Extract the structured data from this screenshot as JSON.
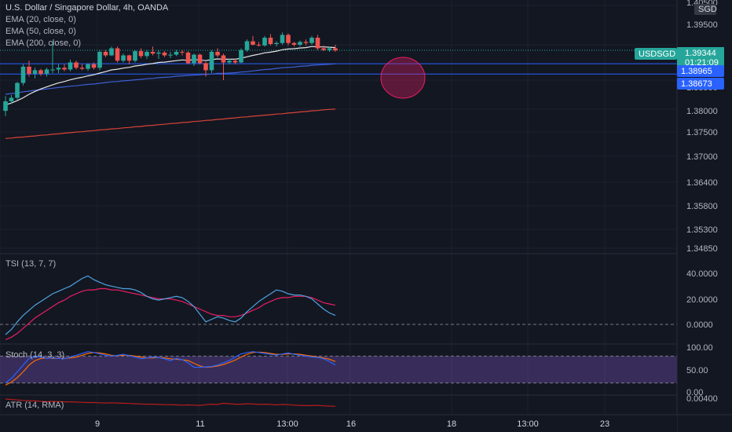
{
  "symbol": {
    "title": "U.S. Dollar / Singapore Dollar, 4h, OANDA",
    "currency": "SGD",
    "ticker": "USDSGD",
    "last_price": "1.39344",
    "countdown": "01:21:09"
  },
  "legend": [
    {
      "label": "EMA (20, close, 0)",
      "color": "#e6e6e6"
    },
    {
      "label": "EMA (50, close, 0)",
      "color": "#3d5fd6"
    },
    {
      "label": "EMA (200, close, 0)",
      "color": "#d84337"
    }
  ],
  "price_axis": {
    "ticks": [
      "1.40500",
      "1.39500",
      "1.38500",
      "1.38000",
      "1.37500",
      "1.37000",
      "1.36400",
      "1.35800",
      "1.35300",
      "1.34850"
    ]
  },
  "horizontal_lines": {
    "line1": "1.38965",
    "line2": "1.38673",
    "color": "#2962ff"
  },
  "tsi": {
    "label": "TSI (13, 7, 7)",
    "ticks": [
      "40.0000",
      "20.0000",
      "0.0000"
    ]
  },
  "stoch": {
    "label": "Stoch (14, 3, 3)",
    "ticks": [
      "100.00",
      "50.00",
      "0.00"
    ]
  },
  "atr": {
    "label": "ATR (14, RMA)",
    "ticks": [
      "0.00400"
    ]
  },
  "time_axis": {
    "ticks": [
      "9",
      "11",
      "13:00",
      "16",
      "18",
      "13:00",
      "23"
    ]
  },
  "colors": {
    "up": "#26a69a",
    "down": "#ef5350",
    "bg": "#131722",
    "grid": "#1e222d",
    "tsi_line": "#4fa3e0",
    "tsi_signal": "#e91e63"
  },
  "chart_data": {
    "type": "candlestick",
    "candles": [
      [
        1.3763,
        1.3805,
        1.3748,
        1.379
      ],
      [
        1.379,
        1.3808,
        1.3782,
        1.38
      ],
      [
        1.38,
        1.3845,
        1.3795,
        1.3842
      ],
      [
        1.3842,
        1.3895,
        1.3835,
        1.3888
      ],
      [
        1.3888,
        1.3905,
        1.386,
        1.3868
      ],
      [
        1.3868,
        1.3885,
        1.3855,
        1.3878
      ],
      [
        1.3878,
        1.3882,
        1.3862,
        1.3868
      ],
      [
        1.3868,
        1.3885,
        1.386,
        1.388
      ],
      [
        1.388,
        1.396,
        1.387,
        1.388
      ],
      [
        1.388,
        1.3895,
        1.387,
        1.3885
      ],
      [
        1.3885,
        1.3895,
        1.3875,
        1.388
      ],
      [
        1.388,
        1.3908,
        1.3875,
        1.39
      ],
      [
        1.39,
        1.3905,
        1.388,
        1.3885
      ],
      [
        1.3885,
        1.3895,
        1.3878,
        1.3882
      ],
      [
        1.3882,
        1.3898,
        1.3876,
        1.3895
      ],
      [
        1.3895,
        1.39,
        1.388,
        1.3885
      ],
      [
        1.3885,
        1.3935,
        1.3878,
        1.393
      ],
      [
        1.393,
        1.3935,
        1.3915,
        1.392
      ],
      [
        1.392,
        1.3945,
        1.3918,
        1.394
      ],
      [
        1.394,
        1.3945,
        1.39,
        1.3905
      ],
      [
        1.3905,
        1.3925,
        1.39,
        1.392
      ],
      [
        1.392,
        1.3922,
        1.3895,
        1.3905
      ],
      [
        1.3905,
        1.3935,
        1.39,
        1.3932
      ],
      [
        1.3932,
        1.394,
        1.3912,
        1.3918
      ],
      [
        1.3918,
        1.3935,
        1.391,
        1.393
      ],
      [
        1.393,
        1.3945,
        1.392,
        1.3925
      ],
      [
        1.3925,
        1.3935,
        1.391,
        1.3928
      ],
      [
        1.3928,
        1.3932,
        1.3915,
        1.392
      ],
      [
        1.392,
        1.393,
        1.3912,
        1.3922
      ],
      [
        1.3922,
        1.3935,
        1.3918,
        1.393
      ],
      [
        1.393,
        1.3935,
        1.392,
        1.3928
      ],
      [
        1.3928,
        1.3932,
        1.3895,
        1.3898
      ],
      [
        1.3898,
        1.3925,
        1.389,
        1.3922
      ],
      [
        1.3922,
        1.3925,
        1.3895,
        1.3898
      ],
      [
        1.3898,
        1.3902,
        1.386,
        1.3878
      ],
      [
        1.3878,
        1.3935,
        1.387,
        1.393
      ],
      [
        1.393,
        1.394,
        1.3915,
        1.392
      ],
      [
        1.392,
        1.3925,
        1.385,
        1.39
      ],
      [
        1.39,
        1.391,
        1.3895,
        1.3905
      ],
      [
        1.3905,
        1.391,
        1.3895,
        1.39
      ],
      [
        1.39,
        1.394,
        1.3898,
        1.3935
      ],
      [
        1.3935,
        1.3965,
        1.393,
        1.396
      ],
      [
        1.396,
        1.3975,
        1.3948,
        1.395
      ],
      [
        1.395,
        1.3958,
        1.3945,
        1.3948
      ],
      [
        1.3948,
        1.3975,
        1.3945,
        1.397
      ],
      [
        1.397,
        1.398,
        1.3948,
        1.3952
      ],
      [
        1.3952,
        1.396,
        1.3945,
        1.3955
      ],
      [
        1.3955,
        1.3985,
        1.395,
        1.3978
      ],
      [
        1.3978,
        1.3982,
        1.3948,
        1.3955
      ],
      [
        1.3955,
        1.3958,
        1.3945,
        1.395
      ],
      [
        1.395,
        1.3962,
        1.3945,
        1.3958
      ],
      [
        1.3958,
        1.3965,
        1.3948,
        1.3955
      ],
      [
        1.3955,
        1.3975,
        1.395,
        1.397
      ],
      [
        1.397,
        1.3978,
        1.3935,
        1.394
      ],
      [
        1.394,
        1.3948,
        1.3932,
        1.3935
      ],
      [
        1.3935,
        1.3945,
        1.393,
        1.394
      ],
      [
        1.394,
        1.395,
        1.393,
        1.3934
      ]
    ],
    "ema20": [
      1.378,
      1.3785,
      1.3792,
      1.38,
      1.381,
      1.3818,
      1.3825,
      1.3831,
      1.3837,
      1.3842,
      1.3846,
      1.3851,
      1.3855,
      1.3858,
      1.3862,
      1.3865,
      1.387,
      1.3874,
      1.3879,
      1.3881,
      1.3884,
      1.3886,
      1.389,
      1.3892,
      1.3895,
      1.3897,
      1.39,
      1.3901,
      1.3903,
      1.3905,
      1.3907,
      1.3906,
      1.3908,
      1.3907,
      1.3905,
      1.3908,
      1.391,
      1.3909,
      1.3909,
      1.3909,
      1.3912,
      1.3916,
      1.392,
      1.3923,
      1.3927,
      1.3929,
      1.3932,
      1.3936,
      1.3938,
      1.3939,
      1.3941,
      1.3942,
      1.3945,
      1.3944,
      1.3944,
      1.3943,
      1.3942
    ],
    "ema50": [
      1.381,
      1.3812,
      1.3814,
      1.3817,
      1.3819,
      1.3821,
      1.3823,
      1.3825,
      1.3827,
      1.3829,
      1.3831,
      1.3833,
      1.3834,
      1.3836,
      1.3838,
      1.3839,
      1.3841,
      1.3843,
      1.3845,
      1.3846,
      1.3848,
      1.3849,
      1.3851,
      1.3852,
      1.3854,
      1.3855,
      1.3857,
      1.3858,
      1.3859,
      1.3861,
      1.3862,
      1.3863,
      1.3864,
      1.3865,
      1.3866,
      1.3867,
      1.3869,
      1.3869,
      1.387,
      1.3871,
      1.3873,
      1.3874,
      1.3876,
      1.3878,
      1.388,
      1.3881,
      1.3883,
      1.3885,
      1.3886,
      1.3887,
      1.3889,
      1.389,
      1.3892,
      1.3893,
      1.3894,
      1.3895,
      1.3896
    ],
    "ema200": [
      1.3685,
      1.3686,
      1.3688,
      1.3689,
      1.3691,
      1.3692,
      1.3694,
      1.3695,
      1.3697,
      1.3698,
      1.37,
      1.3701,
      1.3703,
      1.3704,
      1.3706,
      1.3707,
      1.3709,
      1.371,
      1.3712,
      1.3713,
      1.3715,
      1.3716,
      1.3718,
      1.3719,
      1.3721,
      1.3722,
      1.3724,
      1.3725,
      1.3727,
      1.3728,
      1.373,
      1.3731,
      1.3733,
      1.3734,
      1.3736,
      1.3737,
      1.3739,
      1.374,
      1.3742,
      1.3743,
      1.3745,
      1.3746,
      1.3748,
      1.3749,
      1.3751,
      1.3752,
      1.3754,
      1.3755,
      1.3757,
      1.3758,
      1.376,
      1.3761,
      1.3763,
      1.3764,
      1.3766,
      1.3767,
      1.3768
    ],
    "tsi": [
      -8,
      -4,
      2,
      7,
      11,
      15,
      18,
      21,
      24,
      26,
      28,
      30,
      33,
      36,
      38,
      35,
      33,
      31,
      30,
      29,
      28,
      28,
      27,
      25,
      22,
      20,
      19,
      20,
      21,
      22,
      21,
      18,
      14,
      8,
      2,
      4,
      6,
      5,
      3,
      2,
      5,
      10,
      14,
      18,
      21,
      24,
      27,
      26,
      24,
      23,
      23,
      22,
      20,
      16,
      12,
      9,
      7
    ],
    "tsi_signal": [
      -12,
      -10,
      -7,
      -3,
      1,
      5,
      8,
      11,
      14,
      17,
      19,
      22,
      24,
      26,
      27,
      27,
      28,
      28,
      27,
      27,
      26,
      25,
      24,
      23,
      22,
      21,
      20,
      20,
      20,
      19,
      18,
      16,
      14,
      12,
      10,
      8,
      7,
      7,
      6,
      6,
      7,
      9,
      11,
      13,
      16,
      18,
      20,
      21,
      21,
      22,
      22,
      22,
      21,
      19,
      17,
      16,
      15
    ],
    "stoch_k": [
      20,
      30,
      45,
      60,
      75,
      80,
      78,
      75,
      76,
      75,
      74,
      78,
      82,
      86,
      90,
      88,
      85,
      82,
      80,
      82,
      84,
      81,
      78,
      74,
      76,
      78,
      77,
      74,
      70,
      75,
      72,
      65,
      55,
      55,
      56,
      57,
      60,
      65,
      70,
      78,
      85,
      88,
      90,
      88,
      86,
      84,
      82,
      85,
      87,
      84,
      82,
      80,
      78,
      77,
      74,
      68,
      60
    ],
    "stoch_d": [
      15,
      22,
      32,
      45,
      60,
      70,
      75,
      76,
      75,
      75,
      75,
      76,
      78,
      82,
      86,
      88,
      87,
      85,
      82,
      81,
      82,
      82,
      80,
      78,
      76,
      76,
      77,
      76,
      74,
      73,
      72,
      70,
      64,
      58,
      55,
      56,
      58,
      61,
      66,
      71,
      78,
      84,
      88,
      89,
      88,
      86,
      84,
      84,
      85,
      85,
      84,
      82,
      80,
      78,
      76,
      73,
      68
    ],
    "atr": [
      0.0042,
      0.00418,
      0.00416,
      0.00414,
      0.00413,
      0.00412,
      0.0041,
      0.00409,
      0.0041,
      0.00409,
      0.00408,
      0.00408,
      0.00407,
      0.00406,
      0.00405,
      0.00405,
      0.00404,
      0.00403,
      0.00404,
      0.00403,
      0.00402,
      0.00401,
      0.004,
      0.00399,
      0.00398,
      0.00398,
      0.00397,
      0.00396,
      0.00396,
      0.00395,
      0.00394,
      0.00395,
      0.00394,
      0.00393,
      0.00396,
      0.00398,
      0.00397,
      0.00402,
      0.004,
      0.00398,
      0.00398,
      0.004,
      0.00399,
      0.00397,
      0.00398,
      0.00397,
      0.00395,
      0.00397,
      0.00396,
      0.00394,
      0.00393,
      0.00392,
      0.00392,
      0.00393,
      0.00391,
      0.0039,
      0.00389
    ]
  }
}
